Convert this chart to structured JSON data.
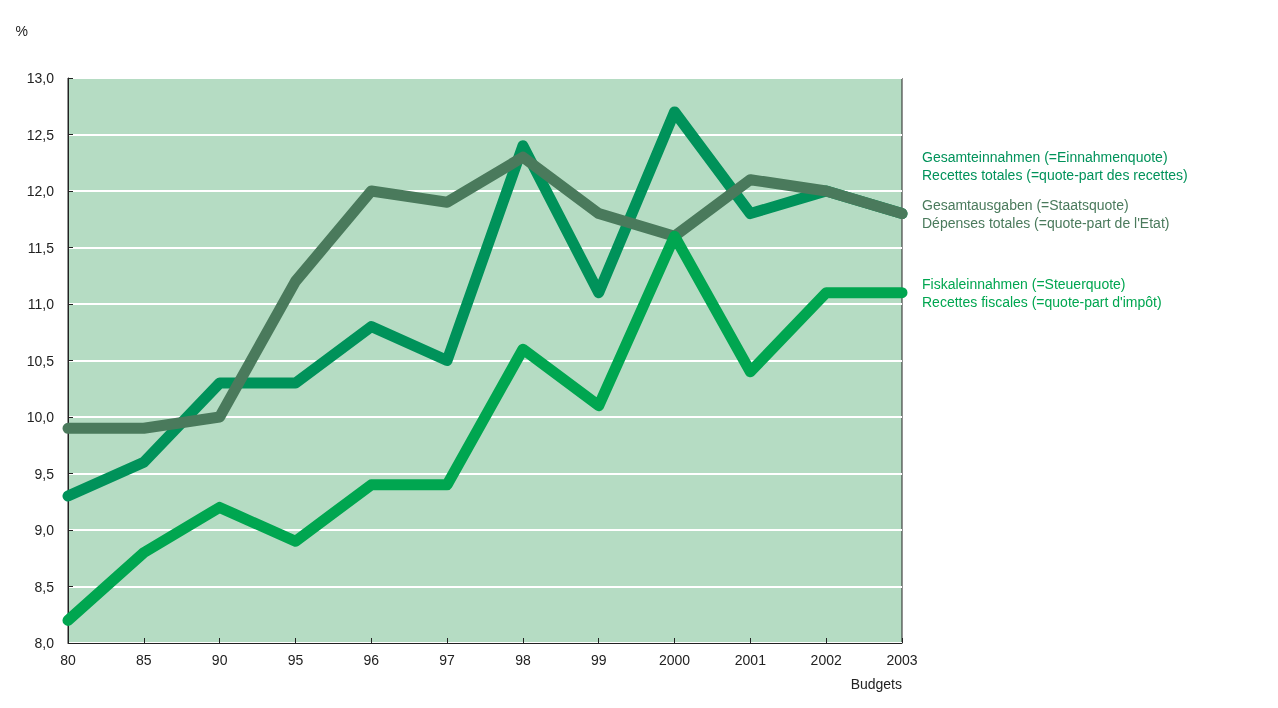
{
  "chart_data": {
    "type": "line",
    "xlabel": "Budgets",
    "ylabel": "%",
    "categories": [
      "80",
      "85",
      "90",
      "95",
      "96",
      "97",
      "98",
      "99",
      "2000",
      "2001",
      "2002",
      "2003"
    ],
    "series": [
      {
        "name": "Gesamteinnahmen (=Einnahmenquote)\nRecettes totales (=quote-part des recettes)",
        "color": "#00925a",
        "values": [
          9.3,
          9.6,
          10.3,
          10.3,
          10.8,
          10.5,
          12.4,
          11.1,
          12.7,
          11.8,
          12.0,
          11.8
        ]
      },
      {
        "name": "Gesamtausgaben (=Staatsquote)\nDépenses totales (=quote-part de l'Etat)",
        "color": "#4a7a5c",
        "values": [
          9.9,
          9.9,
          10.0,
          11.2,
          12.0,
          11.9,
          12.3,
          11.8,
          11.6,
          12.1,
          12.0,
          11.8
        ]
      },
      {
        "name": "Fiskaleinnahmen (=Steuerquote)\nRecettes fiscales (=quote-part d'impôt)",
        "color": "#00a650",
        "values": [
          8.2,
          8.8,
          9.2,
          8.9,
          9.4,
          9.4,
          10.6,
          10.1,
          11.6,
          10.4,
          11.1,
          11.1
        ]
      }
    ],
    "ylim": [
      8,
      13
    ],
    "yticks": [
      {
        "value": 8,
        "label": "8,0"
      },
      {
        "value": 8.5,
        "label": "8,5"
      },
      {
        "value": 9,
        "label": "9,0"
      },
      {
        "value": 9.5,
        "label": "9,5"
      },
      {
        "value": 10,
        "label": "10,0"
      },
      {
        "value": 10.5,
        "label": "10,5"
      },
      {
        "value": 11,
        "label": "11,0"
      },
      {
        "value": 11.5,
        "label": "11,5"
      },
      {
        "value": 12,
        "label": "12,0"
      },
      {
        "value": 12.5,
        "label": "12,5"
      },
      {
        "value": 13,
        "label": "13,0"
      }
    ],
    "grid": "y",
    "marker": "none",
    "line_style": "solid"
  }
}
